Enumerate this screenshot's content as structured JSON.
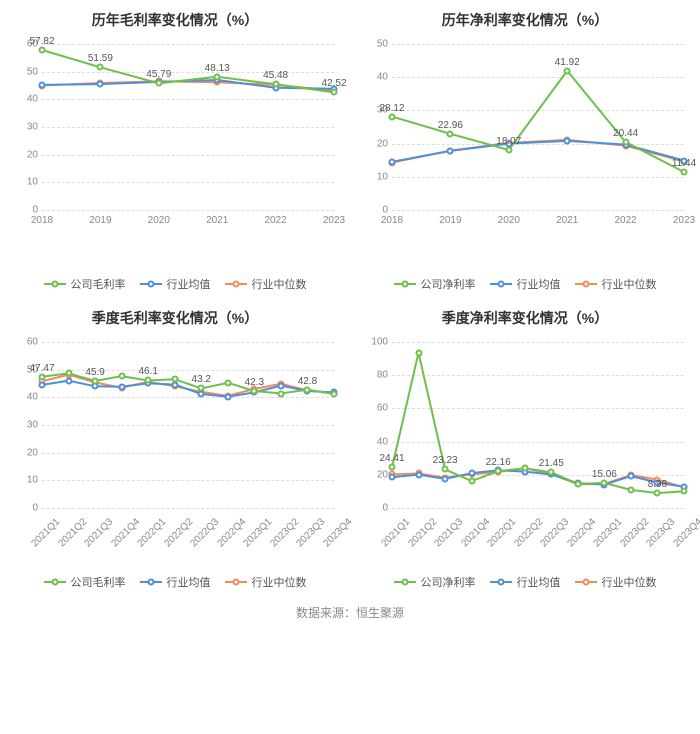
{
  "footer": "数据来源：恒生聚源",
  "colors": {
    "company": "#6fbf4b",
    "industry_avg": "#4f8fd9",
    "industry_med": "#f08c5a",
    "grid": "#dddddd",
    "text": "#888888",
    "background": "#ffffff"
  },
  "legend_labels": {
    "company_gross": "公司毛利率",
    "company_net": "公司净利率",
    "industry_avg": "行业均值",
    "industry_med": "行业中位数"
  },
  "style": {
    "title_fontsize": 14,
    "tick_fontsize": 10,
    "legend_fontsize": 11,
    "line_width": 2,
    "marker_size": 7,
    "marker_style": "circle-open",
    "grid_dash": "4,4"
  },
  "charts": {
    "annual_gross": {
      "title": "历年毛利率变化情况（%）",
      "type": "line",
      "ylim": [
        0,
        60
      ],
      "ytick_step": 10,
      "categories": [
        "2018",
        "2019",
        "2020",
        "2021",
        "2022",
        "2023"
      ],
      "x_rotate": false,
      "show_labels_on": "company",
      "series": {
        "company": [
          57.82,
          51.59,
          45.79,
          48.13,
          45.48,
          42.52
        ],
        "industry_avg": [
          45.2,
          45.5,
          46.3,
          47.0,
          44.2,
          43.8
        ],
        "industry_med": [
          45.0,
          45.9,
          46.5,
          46.2,
          45.2,
          43.2
        ]
      }
    },
    "annual_net": {
      "title": "历年净利率变化情况（%）",
      "type": "line",
      "ylim": [
        0,
        50
      ],
      "ytick_step": 10,
      "categories": [
        "2018",
        "2019",
        "2020",
        "2021",
        "2022",
        "2023"
      ],
      "x_rotate": false,
      "show_labels_on": "company",
      "series": {
        "company": [
          28.12,
          22.96,
          18.07,
          41.92,
          20.44,
          11.44
        ],
        "industry_avg": [
          14.5,
          17.8,
          20.0,
          20.8,
          19.7,
          14.9
        ],
        "industry_med": [
          14.3,
          17.9,
          20.2,
          21.1,
          19.4,
          14.6
        ]
      }
    },
    "quarterly_gross": {
      "title": "季度毛利率变化情况（%）",
      "type": "line",
      "ylim": [
        0,
        60
      ],
      "ytick_step": 10,
      "categories": [
        "2021Q1",
        "2021Q2",
        "2021Q3",
        "2021Q4",
        "2022Q1",
        "2022Q2",
        "2022Q3",
        "2022Q4",
        "2023Q1",
        "2023Q2",
        "2023Q3",
        "2023Q4"
      ],
      "x_rotate": true,
      "show_labels_on": "company",
      "label_every": 2,
      "series": {
        "company": [
          47.47,
          48.65,
          45.9,
          47.64,
          46.1,
          46.57,
          43.2,
          45.24,
          42.3,
          41.37,
          42.8,
          41.2
        ],
        "industry_avg": [
          44.5,
          46.0,
          44.0,
          43.8,
          45.1,
          44.6,
          41.2,
          40.2,
          41.8,
          44.2,
          42.3,
          41.8
        ],
        "industry_med": [
          45.8,
          48.2,
          45.4,
          43.5,
          45.6,
          44.0,
          42.0,
          40.5,
          43.0,
          44.9,
          42.5,
          41.5
        ]
      }
    },
    "quarterly_net": {
      "title": "季度净利率变化情况（%）",
      "type": "line",
      "ylim": [
        0,
        100
      ],
      "ytick_step": 20,
      "categories": [
        "2021Q1",
        "2021Q2",
        "2021Q3",
        "2021Q4",
        "2022Q1",
        "2022Q2",
        "2022Q3",
        "2022Q4",
        "2023Q1",
        "2023Q2",
        "2023Q3",
        "2023Q4"
      ],
      "x_rotate": true,
      "show_labels_on": "company",
      "label_every": 2,
      "series": {
        "company": [
          24.41,
          93.5,
          23.23,
          16.2,
          22.16,
          24.0,
          21.45,
          14.5,
          15.06,
          10.9,
          8.98,
          10.1
        ],
        "industry_avg": [
          18.5,
          20.1,
          17.5,
          21.0,
          22.8,
          21.9,
          20.2,
          15.0,
          14.1,
          19.2,
          15.3,
          12.8
        ],
        "industry_med": [
          20.2,
          20.8,
          18.3,
          20.3,
          21.7,
          23.9,
          20.6,
          14.2,
          14.5,
          19.9,
          17.1,
          12.5
        ]
      }
    }
  }
}
